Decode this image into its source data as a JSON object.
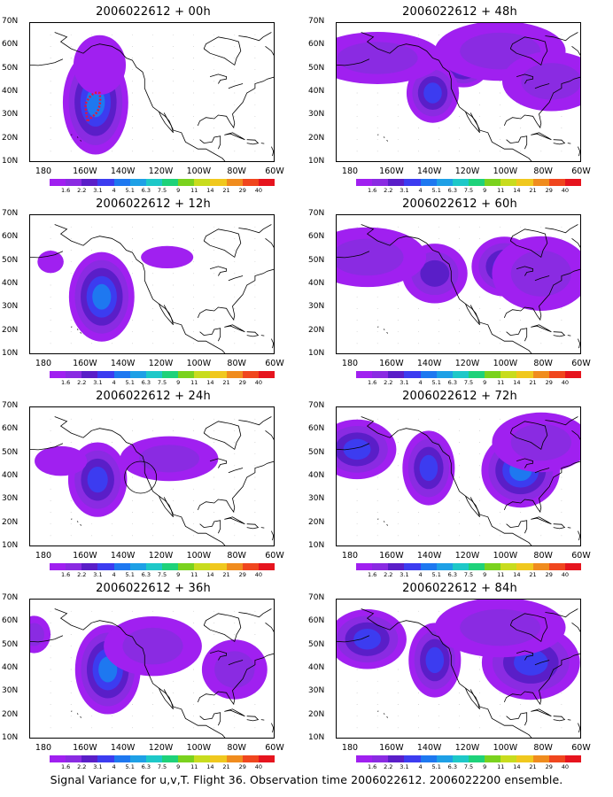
{
  "caption": "Signal Variance for u,v,T. Flight 36. Observation time 2006022612. 2006022200 ensemble.",
  "y_ticks": [
    "70N",
    "60N",
    "50N",
    "40N",
    "30N",
    "20N",
    "10N"
  ],
  "x_ticks": [
    "180",
    "160W",
    "140W",
    "120W",
    "100W",
    "80W",
    "60W"
  ],
  "colorbar": {
    "labels": [
      "1.6",
      "2.2",
      "3.1",
      "4",
      "5.1",
      "6.3",
      "7.5",
      "9",
      "11",
      "14",
      "21",
      "29",
      "40"
    ],
    "colors": [
      "#a020f0",
      "#8a2be2",
      "#5a1ec8",
      "#3c3cf0",
      "#1e78f0",
      "#1ea0e6",
      "#1ec8c8",
      "#1ed27a",
      "#7ad21e",
      "#c8dc1e",
      "#f0c81e",
      "#f08c1e",
      "#f0461e",
      "#e6141e"
    ]
  },
  "panels": [
    {
      "title": "2006022612 + 00h"
    },
    {
      "title": "2006022612 + 48h"
    },
    {
      "title": "2006022612 + 12h"
    },
    {
      "title": "2006022612 + 60h"
    },
    {
      "title": "2006022612 + 24h"
    },
    {
      "title": "2006022612 + 72h"
    },
    {
      "title": "2006022612 + 36h"
    },
    {
      "title": "2006022612 + 84h"
    }
  ],
  "chart_data": {
    "type": "heatmap",
    "description_units": "signal variance, map domain 180–60W, 10N–70N",
    "lon_range": [
      -180,
      -60
    ],
    "lat_range": [
      10,
      70
    ],
    "levels": [
      1.6,
      2.2,
      3.1,
      4,
      5.1,
      6.3,
      7.5,
      9,
      11,
      14,
      21,
      29,
      40
    ],
    "fields": [
      {
        "lead": "00h",
        "blobs": [
          {
            "lon": -148,
            "lat": 36,
            "r": [
              10,
              14
            ],
            "peak": 5.1
          },
          {
            "lon": -146,
            "lat": 52,
            "r": [
              8,
              8
            ],
            "peak": 1.6
          }
        ]
      },
      {
        "lead": "48h",
        "blobs": [
          {
            "lon": -118,
            "lat": 52,
            "r": [
              8,
              6
            ],
            "peak": 5.1
          },
          {
            "lon": -133,
            "lat": 40,
            "r": [
              8,
              8
            ],
            "peak": 4
          },
          {
            "lon": -160,
            "lat": 55,
            "r": [
              20,
              7
            ],
            "peak": 2.2
          },
          {
            "lon": -100,
            "lat": 58,
            "r": [
              20,
              8
            ],
            "peak": 2.2
          },
          {
            "lon": -75,
            "lat": 45,
            "r": [
              15,
              8
            ],
            "peak": 2.2
          }
        ]
      },
      {
        "lead": "12h",
        "blobs": [
          {
            "lon": -145,
            "lat": 35,
            "r": [
              10,
              12
            ],
            "peak": 5.1
          },
          {
            "lon": -170,
            "lat": 50,
            "r": [
              4,
              3
            ],
            "peak": 1.6
          },
          {
            "lon": -113,
            "lat": 52,
            "r": [
              8,
              3
            ],
            "peak": 1.6
          }
        ]
      },
      {
        "lead": "60h",
        "blobs": [
          {
            "lon": -98,
            "lat": 48,
            "r": [
              10,
              8
            ],
            "peak": 4
          },
          {
            "lon": -132,
            "lat": 45,
            "r": [
              10,
              8
            ],
            "peak": 3.1
          },
          {
            "lon": -165,
            "lat": 52,
            "r": [
              18,
              8
            ],
            "peak": 2.2
          },
          {
            "lon": -80,
            "lat": 45,
            "r": [
              15,
              10
            ],
            "peak": 2.2
          }
        ]
      },
      {
        "lead": "24h",
        "blobs": [
          {
            "lon": -147,
            "lat": 39,
            "r": [
              9,
              10
            ],
            "peak": 4
          },
          {
            "lon": -112,
            "lat": 48,
            "r": [
              15,
              6
            ],
            "peak": 2.2
          },
          {
            "lon": -165,
            "lat": 47,
            "r": [
              8,
              4
            ],
            "peak": 1.6
          }
        ]
      },
      {
        "lead": "72h",
        "blobs": [
          {
            "lon": -170,
            "lat": 52,
            "r": [
              12,
              8
            ],
            "peak": 4
          },
          {
            "lon": -135,
            "lat": 44,
            "r": [
              8,
              10
            ],
            "peak": 4
          },
          {
            "lon": -90,
            "lat": 43,
            "r": [
              12,
              10
            ],
            "peak": 5.1
          },
          {
            "lon": -80,
            "lat": 55,
            "r": [
              15,
              8
            ],
            "peak": 2.2
          }
        ]
      },
      {
        "lead": "36h",
        "blobs": [
          {
            "lon": -142,
            "lat": 40,
            "r": [
              10,
              12
            ],
            "peak": 5.1
          },
          {
            "lon": -120,
            "lat": 50,
            "r": [
              15,
              8
            ],
            "peak": 2.2
          },
          {
            "lon": -80,
            "lat": 40,
            "r": [
              10,
              8
            ],
            "peak": 2.2
          },
          {
            "lon": -178,
            "lat": 55,
            "r": [
              5,
              5
            ],
            "peak": 2.2
          }
        ]
      },
      {
        "lead": "84h",
        "blobs": [
          {
            "lon": -165,
            "lat": 53,
            "r": [
              12,
              8
            ],
            "peak": 4
          },
          {
            "lon": -132,
            "lat": 44,
            "r": [
              8,
              10
            ],
            "peak": 4
          },
          {
            "lon": -85,
            "lat": 43,
            "r": [
              15,
              10
            ],
            "peak": 4
          },
          {
            "lon": -100,
            "lat": 58,
            "r": [
              20,
              8
            ],
            "peak": 2.2
          }
        ]
      }
    ]
  }
}
